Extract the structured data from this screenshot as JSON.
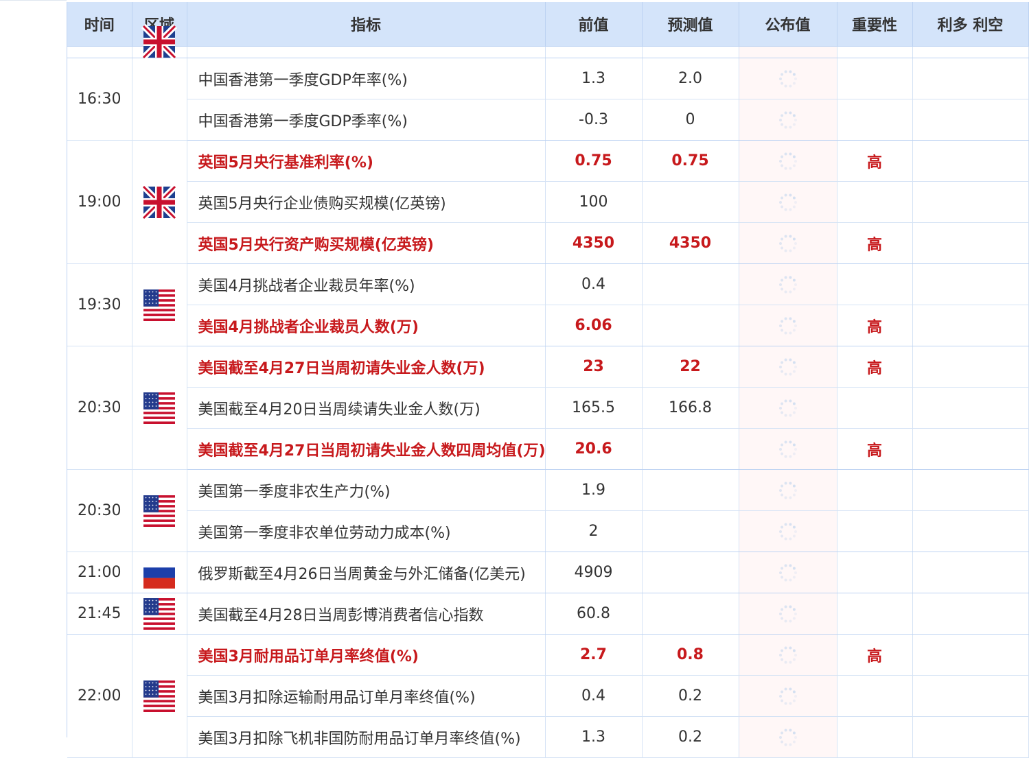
{
  "headers": {
    "time": "时间",
    "zone": "区域",
    "indicator": "指标",
    "prev": "前值",
    "forecast": "预测值",
    "actual": "公布值",
    "importance": "重要性",
    "effect": "利多 利空"
  },
  "colors": {
    "header_bg": "#d4e4fa",
    "highlight_red": "#c7191c",
    "actual_col_bg": "#fff7f7",
    "grid": "#d5e3f5"
  },
  "rows": [
    {
      "indicator": "中国香港第一季度GDP年率(%)",
      "prev": "1.3",
      "forecast": "2.0"
    },
    {
      "indicator": "中国香港第一季度GDP季率(%)",
      "prev": "-0.3",
      "forecast": "0"
    },
    {
      "indicator": "英国5月央行基准利率(%)",
      "prev": "0.75",
      "forecast": "0.75",
      "importance": "高"
    },
    {
      "indicator": "英国5月央行企业债购买规模(亿英镑)",
      "prev": "100",
      "forecast": ""
    },
    {
      "indicator": "英国5月央行资产购买规模(亿英镑)",
      "prev": "4350",
      "forecast": "4350",
      "importance": "高"
    },
    {
      "indicator": "美国4月挑战者企业裁员年率(%)",
      "prev": "0.4",
      "forecast": ""
    },
    {
      "indicator": "美国4月挑战者企业裁员人数(万)",
      "prev": "6.06",
      "forecast": "",
      "importance": "高"
    },
    {
      "indicator": "美国截至4月27日当周初请失业金人数(万)",
      "prev": "23",
      "forecast": "22",
      "importance": "高"
    },
    {
      "indicator": "美国截至4月20日当周续请失业金人数(万)",
      "prev": "165.5",
      "forecast": "166.8"
    },
    {
      "indicator": "美国截至4月27日当周初请失业金人数四周均值(万)",
      "prev": "20.6",
      "forecast": "",
      "importance": "高"
    },
    {
      "indicator": "美国第一季度非农生产力(%)",
      "prev": "1.9",
      "forecast": ""
    },
    {
      "indicator": "美国第一季度非农单位劳动力成本(%)",
      "prev": "2",
      "forecast": ""
    },
    {
      "indicator": "俄罗斯截至4月26日当周黄金与外汇储备(亿美元)",
      "prev": "4909",
      "forecast": ""
    },
    {
      "indicator": "美国截至4月28日当周彭博消费者信心指数",
      "prev": "60.8",
      "forecast": ""
    },
    {
      "indicator": "美国3月耐用品订单月率终值(%)",
      "prev": "2.7",
      "forecast": "0.8",
      "importance": "高"
    },
    {
      "indicator": "美国3月扣除运输耐用品订单月率终值(%)",
      "prev": "0.4",
      "forecast": "0.2"
    },
    {
      "indicator": "美国3月扣除飞机非国防耐用品订单月率终值(%)",
      "prev": "1.3",
      "forecast": "0.2"
    }
  ],
  "groups": [
    {
      "time": "16:30",
      "flag": "none",
      "flag_icon": ""
    },
    {
      "time": "19:00",
      "flag": "uk",
      "flag_icon": "uk-flag-icon"
    },
    {
      "time": "19:30",
      "flag": "us",
      "flag_icon": "us-flag-icon"
    },
    {
      "time": "20:30",
      "flag": "us",
      "flag_icon": "us-flag-icon"
    },
    {
      "time": "20:30",
      "flag": "us",
      "flag_icon": "us-flag-icon"
    },
    {
      "time": "21:00",
      "flag": "ru",
      "flag_icon": "russia-flag-icon"
    },
    {
      "time": "21:45",
      "flag": "us",
      "flag_icon": "us-flag-icon"
    },
    {
      "time": "22:00",
      "flag": "us",
      "flag_icon": "us-flag-icon"
    }
  ],
  "loading_icon": "loading-spinner-icon"
}
